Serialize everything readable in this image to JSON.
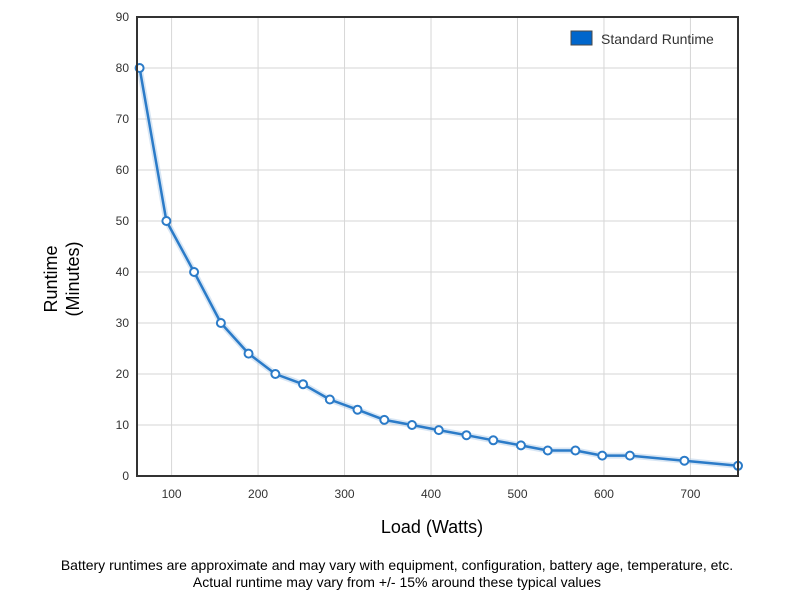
{
  "chart_data": {
    "type": "line",
    "title": "",
    "xlabel": "Load (Watts)",
    "ylabel_lines": [
      "Runtime",
      "(Minutes)"
    ],
    "xlim": [
      60,
      755
    ],
    "ylim": [
      0,
      90
    ],
    "x_ticks": [
      100,
      200,
      300,
      400,
      500,
      600,
      700
    ],
    "y_ticks": [
      0,
      10,
      20,
      30,
      40,
      50,
      60,
      70,
      80,
      90
    ],
    "grid": true,
    "legend_position": "top-right",
    "series": [
      {
        "name": "Standard Runtime",
        "color": "#2b7bc8",
        "legend_color": "#0066cc",
        "x": [
          63,
          94,
          126,
          157,
          189,
          220,
          252,
          283,
          315,
          346,
          378,
          409,
          441,
          472,
          504,
          535,
          567,
          598,
          630,
          693,
          755
        ],
        "y": [
          80,
          50,
          40,
          30,
          24,
          20,
          18,
          15,
          13,
          11,
          10,
          9,
          8,
          7,
          6,
          5,
          5,
          4,
          4,
          3,
          2
        ]
      }
    ]
  },
  "footnotes": {
    "line1": "Battery runtimes are approximate and may vary with equipment, configuration, battery age, temperature, etc.",
    "line2": "Actual runtime may vary from +/- 15% around these typical values"
  }
}
